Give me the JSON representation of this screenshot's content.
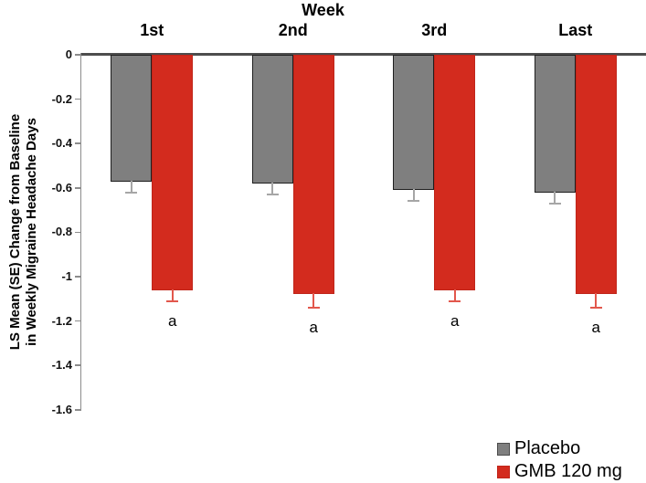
{
  "chart_data": {
    "type": "bar",
    "title": "Week",
    "categories": [
      "1st",
      "2nd",
      "3rd",
      "Last"
    ],
    "series": [
      {
        "name": "Placebo",
        "color": "#7f7f7f",
        "edge_color": "#1f1f1f",
        "error_color": "#a6a6a6",
        "values": [
          -0.57,
          -0.58,
          -0.61,
          -0.62
        ],
        "se": [
          0.05,
          0.05,
          0.05,
          0.05
        ],
        "point_labels": [
          "",
          "",
          "",
          ""
        ]
      },
      {
        "name": "GMB 120 mg",
        "color": "#d32b1e",
        "edge_color": "#c0251a",
        "error_color": "#e2574c",
        "values": [
          -1.06,
          -1.08,
          -1.06,
          -1.08
        ],
        "se": [
          0.05,
          0.06,
          0.05,
          0.06
        ],
        "point_labels": [
          "a",
          "a",
          "a",
          "a"
        ]
      }
    ],
    "xlabel": "",
    "ylabel": "LS Mean (SE) Change from Baseline\nin Weekly Migraine Headache Days",
    "ylim": [
      -1.6,
      0
    ],
    "yticks": [
      0,
      -0.2,
      -0.4,
      -0.6,
      -0.8,
      -1,
      -1.2,
      -1.4,
      -1.6
    ],
    "ytick_labels": [
      "0",
      "-0.2",
      "-0.4",
      "-0.6",
      "-0.8",
      "-1",
      "-1.2",
      "-1.4",
      "-1.6"
    ],
    "grid": false,
    "legend_position": "bottom-right",
    "axis_color": "#4d4d4d",
    "minor_axis_color": "#8c8c8c"
  }
}
